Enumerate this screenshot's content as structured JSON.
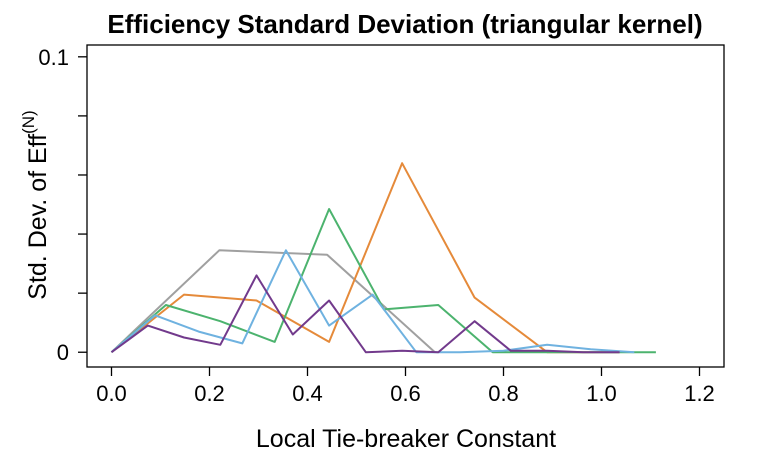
{
  "chart_data": {
    "type": "line",
    "title": "Efficiency Standard Deviation (triangular kernel)",
    "xlabel": "Local Tie-breaker Constant",
    "ylabel": "Std. Dev. of  Eff",
    "ylabel_sup": "(N)",
    "xlim": [
      -0.05,
      1.25
    ],
    "ylim": [
      -0.005,
      0.104
    ],
    "xticks": [
      0.0,
      0.2,
      0.4,
      0.6,
      0.8,
      1.0,
      1.2
    ],
    "xtick_labels": [
      "0.0",
      "0.2",
      "0.4",
      "0.6",
      "0.8",
      "1.0",
      "1.2"
    ],
    "yticks": [
      0,
      0.02,
      0.04,
      0.06,
      0.08,
      0.1
    ],
    "ytick_labels": [
      "0",
      "",
      "",
      "",
      "",
      "0.1"
    ],
    "grid": false,
    "legend": "none",
    "series": [
      {
        "color": "#a0a0a0",
        "x": [
          0.0,
          0.22,
          0.44,
          0.66
        ],
        "y": [
          0.0,
          0.0345,
          0.033,
          0.0
        ]
      },
      {
        "color": "#e58a3a",
        "x": [
          0.0,
          0.148,
          0.296,
          0.444,
          0.593,
          0.741,
          0.889,
          1.037
        ],
        "y": [
          0.0,
          0.0195,
          0.0175,
          0.0035,
          0.064,
          0.0185,
          0.0,
          0.0
        ]
      },
      {
        "color": "#4cb36e",
        "x": [
          0.0,
          0.111,
          0.222,
          0.333,
          0.444,
          0.556,
          0.667,
          0.778,
          0.889,
          1.0,
          1.111
        ],
        "y": [
          0.0,
          0.016,
          0.0105,
          0.0035,
          0.0485,
          0.0145,
          0.016,
          0.0,
          0.0,
          0.0,
          0.0
        ]
      },
      {
        "color": "#6fb2e0",
        "x": [
          0.0,
          0.089,
          0.178,
          0.267,
          0.356,
          0.444,
          0.533,
          0.622,
          0.711,
          0.8,
          0.889,
          0.978,
          1.067
        ],
        "y": [
          0.0,
          0.0125,
          0.007,
          0.003,
          0.0345,
          0.009,
          0.0195,
          0.0,
          0.0,
          0.0005,
          0.0025,
          0.001,
          0.0
        ]
      },
      {
        "color": "#723a8c",
        "x": [
          0.0,
          0.074,
          0.148,
          0.222,
          0.296,
          0.37,
          0.444,
          0.519,
          0.593,
          0.667,
          0.741,
          0.815,
          0.889,
          0.963,
          1.037
        ],
        "y": [
          0.0,
          0.009,
          0.005,
          0.0025,
          0.026,
          0.006,
          0.0175,
          0.0,
          0.0005,
          0.0,
          0.0105,
          0.0005,
          0.0005,
          0.0,
          0.0
        ]
      }
    ]
  }
}
